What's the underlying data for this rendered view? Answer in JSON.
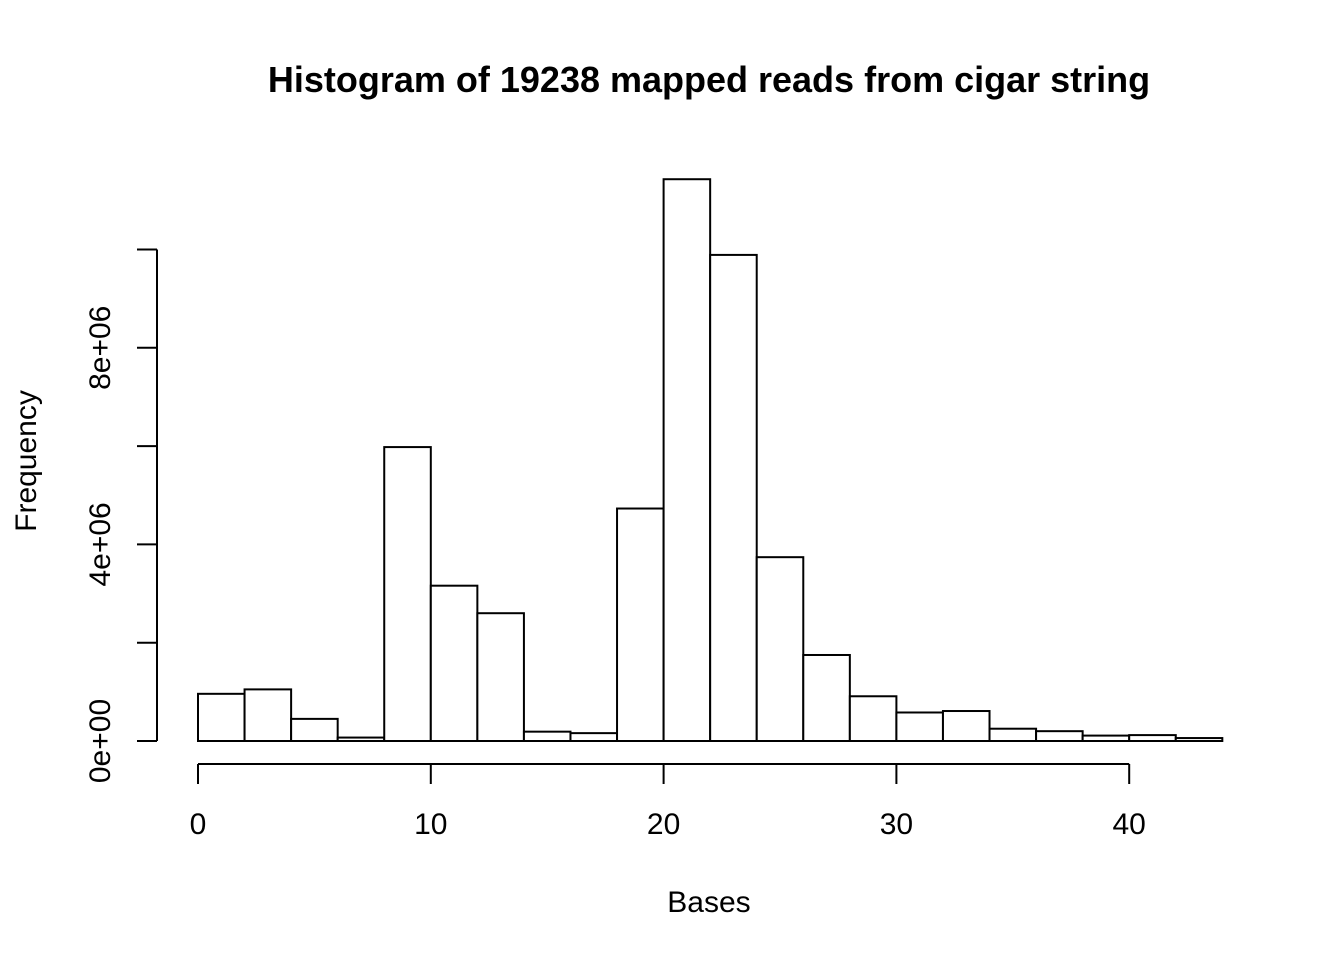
{
  "chart_data": {
    "type": "bar",
    "subtype": "histogram",
    "title": "Histogram of 19238 mapped reads from cigar string",
    "xlabel": "Bases",
    "ylabel": "Frequency",
    "xlim": [
      0,
      44
    ],
    "ylim": [
      0,
      11500000
    ],
    "grid": false,
    "legend": "none",
    "x_ticks": [
      0,
      10,
      20,
      30,
      40
    ],
    "x_tick_labels": [
      "0",
      "10",
      "20",
      "30",
      "40"
    ],
    "y_ticks": [
      0,
      2000000,
      4000000,
      6000000,
      8000000,
      10000000
    ],
    "y_tick_labels": [
      "0e+00",
      "",
      "4e+06",
      "",
      "8e+06",
      ""
    ],
    "bin_edges": [
      0,
      2,
      4,
      6,
      8,
      10,
      12,
      14,
      16,
      18,
      20,
      22,
      24,
      26,
      28,
      30,
      32,
      34,
      36,
      38,
      40,
      42,
      44
    ],
    "values": [
      960000,
      1050000,
      450000,
      70000,
      5980000,
      3160000,
      2600000,
      190000,
      160000,
      4730000,
      11430000,
      9890000,
      3740000,
      1750000,
      910000,
      580000,
      610000,
      250000,
      200000,
      110000,
      120000,
      60000
    ],
    "colors": {
      "bar_fill": "#ffffff",
      "bar_stroke": "#000000",
      "axis": "#000000",
      "background": "#ffffff"
    }
  }
}
